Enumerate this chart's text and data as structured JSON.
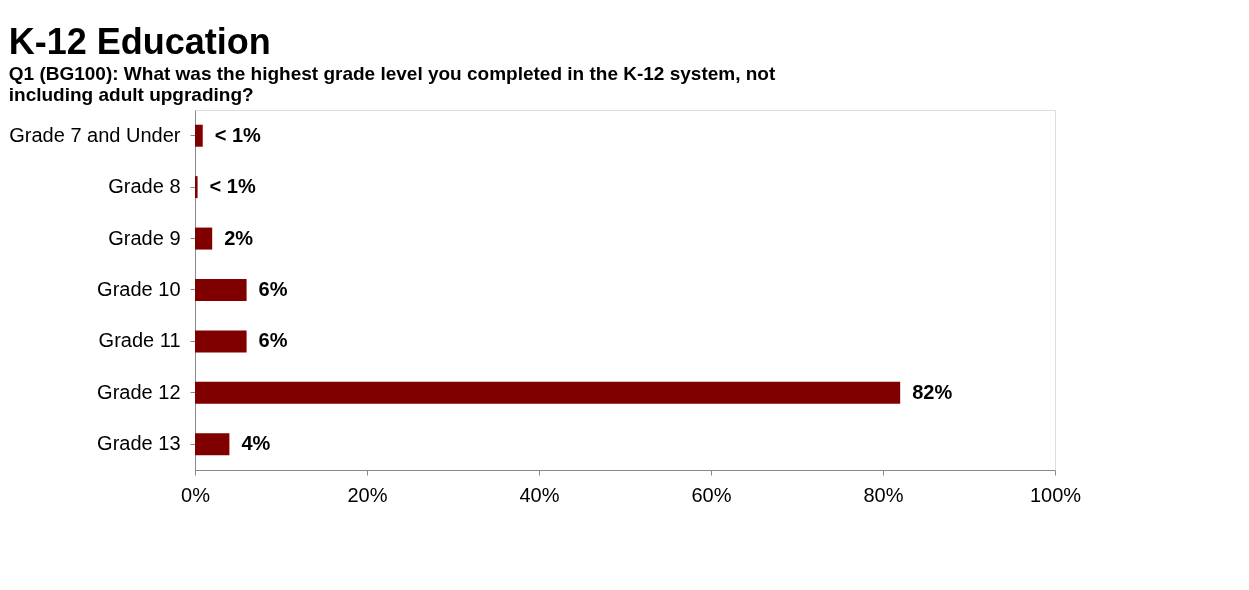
{
  "chart_data": {
    "type": "bar",
    "orientation": "horizontal",
    "title": "K-12 Education",
    "subtitle": "Q1 (BG100): What was the highest grade level you completed in the K-12 system, not\nincluding adult upgrading?",
    "categories": [
      "Grade 7 and Under",
      "Grade 8",
      "Grade 9",
      "Grade 10",
      "Grade 11",
      "Grade 12",
      "Grade 13"
    ],
    "values": [
      0.9,
      0.3,
      2,
      6,
      6,
      82,
      4
    ],
    "value_labels": [
      "< 1%",
      "< 1%",
      "2%",
      "6%",
      "6%",
      "82%",
      "4%"
    ],
    "color": "#800000",
    "xlim": [
      0,
      100
    ],
    "xticks": [
      {
        "value": 0,
        "label": "0%"
      },
      {
        "value": 20,
        "label": "20%"
      },
      {
        "value": 40,
        "label": "40%"
      },
      {
        "value": 60,
        "label": "60%"
      },
      {
        "value": 80,
        "label": "80%"
      },
      {
        "value": 100,
        "label": "100%"
      }
    ],
    "grid": false
  }
}
